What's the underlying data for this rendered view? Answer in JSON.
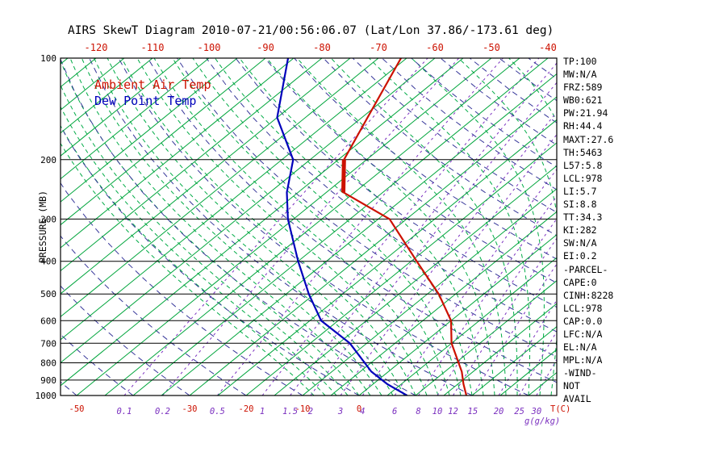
{
  "title": "AIRS SkewT Diagram 2010-07-21/00:56:06.07 (Lat/Lon 37.86/-173.61 deg)",
  "legend": {
    "temp": "Ambient Air Temp",
    "dewpoint": "Dew Point Temp"
  },
  "axes": {
    "pressure_label": "PRESSURE (MB)",
    "pressure_ticks": [
      100,
      200,
      300,
      400,
      500,
      600,
      700,
      800,
      900,
      1000
    ],
    "top_temp_ticks": [
      -120,
      -110,
      -100,
      -90,
      -80,
      -70,
      -60,
      -50,
      -40
    ],
    "bottom_ticks": [
      {
        "label": "-50",
        "kind": "temp",
        "value": -50
      },
      {
        "label": "0.1",
        "kind": "mixing",
        "value": 0.1
      },
      {
        "label": "0.2",
        "kind": "mixing",
        "value": 0.2
      },
      {
        "label": "-30",
        "kind": "temp",
        "value": -30
      },
      {
        "label": "0.5",
        "kind": "mixing",
        "value": 0.5
      },
      {
        "label": "-20",
        "kind": "temp",
        "value": -20
      },
      {
        "label": "1",
        "kind": "mixing",
        "value": 1
      },
      {
        "label": "1.5",
        "kind": "mixing",
        "value": 1.5
      },
      {
        "label": "2",
        "kind": "mixing",
        "value": 2
      },
      {
        "label": "-10",
        "kind": "temp",
        "value": -10
      },
      {
        "label": "3",
        "kind": "mixing",
        "value": 3
      },
      {
        "label": "4",
        "kind": "mixing",
        "value": 4
      },
      {
        "label": "0",
        "kind": "temp",
        "value": 0
      },
      {
        "label": "6",
        "kind": "mixing",
        "value": 6
      },
      {
        "label": "8",
        "kind": "mixing",
        "value": 8
      },
      {
        "label": "10",
        "kind": "mixing",
        "value": 10
      },
      {
        "label": "12",
        "kind": "mixing",
        "value": 12
      },
      {
        "label": "15",
        "kind": "mixing",
        "value": 15
      },
      {
        "label": "20",
        "kind": "mixing",
        "value": 20
      },
      {
        "label": "25",
        "kind": "mixing",
        "value": 25
      },
      {
        "label": "30",
        "kind": "mixing",
        "value": 30
      }
    ],
    "temp_unit_label": "T(C)",
    "mixing_unit_label": "g(g/kg)"
  },
  "stats_panel": [
    "TP:100",
    "MW:N/A",
    "FRZ:589",
    "WB0:621",
    "PW:21.94",
    "RH:44.4",
    "MAXT:27.6",
    "TH:5463",
    "L57:5.8",
    "LCL:978",
    "LI:5.7",
    "SI:8.8",
    "TT:34.3",
    "KI:282",
    "SW:N/A",
    "EI:0.2",
    "-PARCEL-",
    "CAPE:0",
    "CINH:8228",
    "LCL:978",
    "CAP:0.0",
    "LFC:N/A",
    "EL:N/A",
    "MPL:N/A",
    "-WIND-",
    "NOT",
    "AVAIL"
  ],
  "colors": {
    "ambient_temp": "#cc1100",
    "dew_point": "#0000bb",
    "isotherm": "#00a53c",
    "moist_adiabat": "#00ab46",
    "dry_adiabat": "#38389a",
    "mixing_ratio": "#7a2fbf",
    "axis": "#000000"
  },
  "chart_data": {
    "type": "line",
    "title": "AIRS SkewT Diagram 2010-07-21/00:56:06.07 (Lat/Lon 37.86/-173.61 deg)",
    "xlabel": "T(C)",
    "ylabel": "PRESSURE (MB)",
    "y_scale": "log",
    "pressure_range": [
      100,
      1000
    ],
    "bottom_temp_range": [
      -50,
      30
    ],
    "top_temp_range": [
      -120,
      -40
    ],
    "grid": {
      "isotherms_c": {
        "start": -130,
        "end": 45,
        "step": 5
      },
      "dry_adiabats_theta_c": {
        "start": -60,
        "end": 190,
        "step": 10
      },
      "moist_adiabats_thetaw_c": {
        "start": -8,
        "end": 40,
        "step": 2
      },
      "mixing_ratio_g_kg": [
        0.1,
        0.2,
        0.5,
        1,
        1.5,
        2,
        3,
        4,
        6,
        8,
        10,
        12,
        15,
        20,
        25,
        30
      ]
    },
    "series": [
      {
        "name": "Ambient Air Temp",
        "color_key": "ambient_temp",
        "points": [
          {
            "p": 1000,
            "t": 19
          },
          {
            "p": 925,
            "t": 16
          },
          {
            "p": 850,
            "t": 13
          },
          {
            "p": 700,
            "t": 5
          },
          {
            "p": 600,
            "t": 0
          },
          {
            "p": 500,
            "t": -8
          },
          {
            "p": 400,
            "t": -19
          },
          {
            "p": 300,
            "t": -33
          },
          {
            "p": 250,
            "t": -47
          },
          {
            "p": 200,
            "t": -54
          },
          {
            "p": 150,
            "t": -59
          },
          {
            "p": 100,
            "t": -66
          }
        ]
      },
      {
        "name": "Dew Point Temp",
        "color_key": "dew_point",
        "points": [
          {
            "p": 1000,
            "t": 8.5
          },
          {
            "p": 925,
            "t": 2.5
          },
          {
            "p": 850,
            "t": -3
          },
          {
            "p": 700,
            "t": -13
          },
          {
            "p": 600,
            "t": -23
          },
          {
            "p": 500,
            "t": -31
          },
          {
            "p": 400,
            "t": -40
          },
          {
            "p": 300,
            "t": -51
          },
          {
            "p": 250,
            "t": -57
          },
          {
            "p": 200,
            "t": -63
          },
          {
            "p": 150,
            "t": -75
          },
          {
            "p": 100,
            "t": -86
          }
        ]
      }
    ],
    "bold_segment": {
      "series": "Ambient Air Temp",
      "p_from": 250,
      "p_to": 200
    }
  }
}
